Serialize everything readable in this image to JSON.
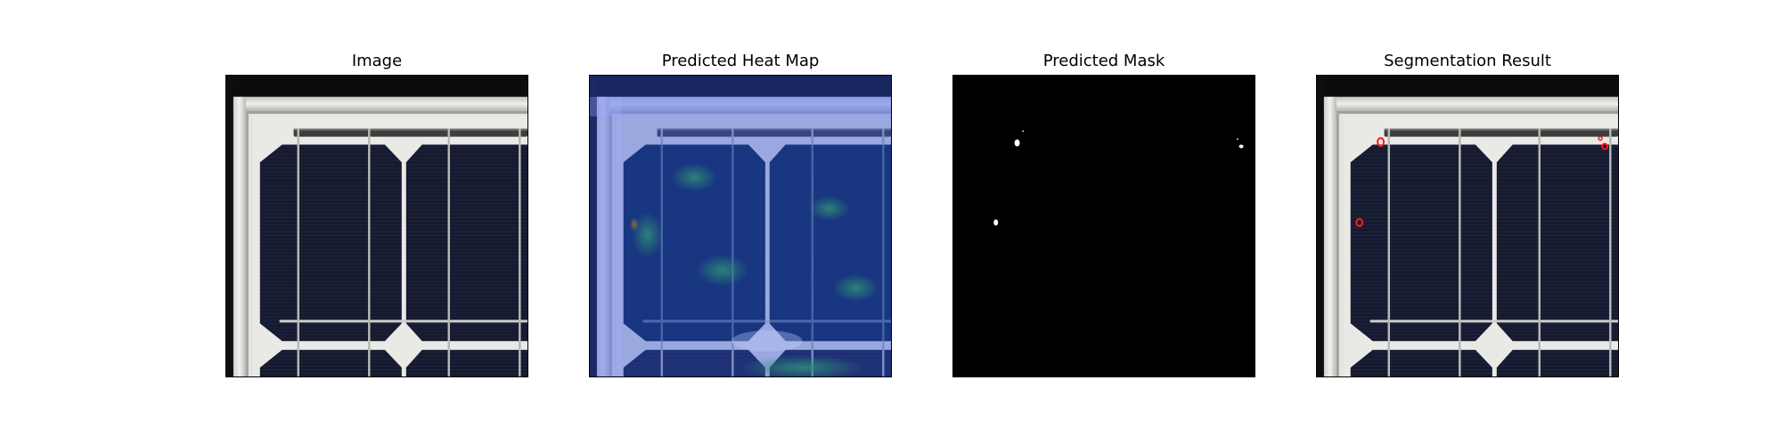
{
  "figure": {
    "panels": [
      {
        "id": "image",
        "title": "Image"
      },
      {
        "id": "heatmap",
        "title": "Predicted Heat Map"
      },
      {
        "id": "mask",
        "title": "Predicted Mask"
      },
      {
        "id": "segmentation",
        "title": "Segmentation Result"
      }
    ]
  }
}
